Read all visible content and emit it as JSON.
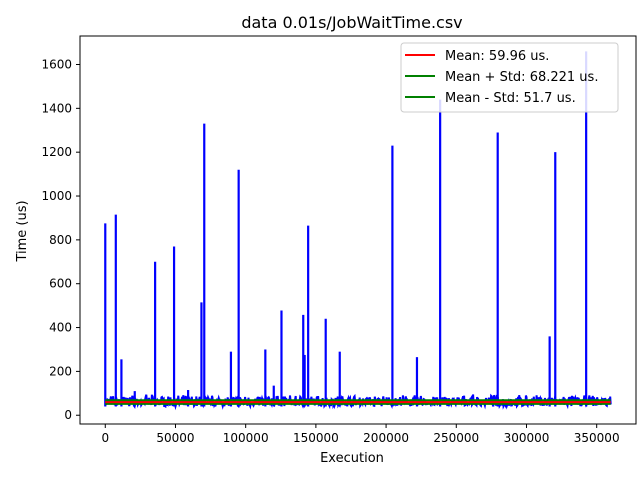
{
  "chart_data": {
    "type": "line",
    "title": "data 0.01s/JobWaitTime.csv",
    "xlabel": "Execution",
    "ylabel": "Time (us)",
    "xlim": [
      -18000,
      378000
    ],
    "ylim": [
      -40,
      1730
    ],
    "xticks": [
      0,
      50000,
      100000,
      150000,
      200000,
      250000,
      300000,
      350000
    ],
    "yticks": [
      0,
      200,
      400,
      600,
      800,
      1000,
      1200,
      1400,
      1600
    ],
    "grid": false,
    "legend_position": "top-right",
    "series": [
      {
        "name": "data",
        "color": "#0000ff",
        "baseline_range": [
          40,
          95
        ],
        "x_range": [
          0,
          360000
        ],
        "spikes": [
          {
            "x": 0,
            "y": 875
          },
          {
            "x": 7500,
            "y": 915
          },
          {
            "x": 11500,
            "y": 255
          },
          {
            "x": 21000,
            "y": 110
          },
          {
            "x": 35500,
            "y": 700
          },
          {
            "x": 49000,
            "y": 770
          },
          {
            "x": 59000,
            "y": 115
          },
          {
            "x": 68500,
            "y": 515
          },
          {
            "x": 70500,
            "y": 1330
          },
          {
            "x": 89500,
            "y": 290
          },
          {
            "x": 95000,
            "y": 1120
          },
          {
            "x": 114000,
            "y": 300
          },
          {
            "x": 120000,
            "y": 135
          },
          {
            "x": 125500,
            "y": 478
          },
          {
            "x": 141000,
            "y": 458
          },
          {
            "x": 142000,
            "y": 275
          },
          {
            "x": 144500,
            "y": 865
          },
          {
            "x": 157000,
            "y": 440
          },
          {
            "x": 167000,
            "y": 290
          },
          {
            "x": 204500,
            "y": 1230
          },
          {
            "x": 222000,
            "y": 265
          },
          {
            "x": 238500,
            "y": 1440
          },
          {
            "x": 279500,
            "y": 1290
          },
          {
            "x": 316500,
            "y": 360
          },
          {
            "x": 320500,
            "y": 1200
          },
          {
            "x": 342500,
            "y": 1660
          }
        ]
      },
      {
        "name": "Mean: 59.96 us.",
        "color": "#ff0000",
        "value": 59.96
      },
      {
        "name": "Mean + Std:  68.221 us.",
        "color": "#008000",
        "value": 68.221
      },
      {
        "name": "Mean - Std:  51.7 us.",
        "color": "#008000",
        "value": 51.7
      }
    ]
  }
}
